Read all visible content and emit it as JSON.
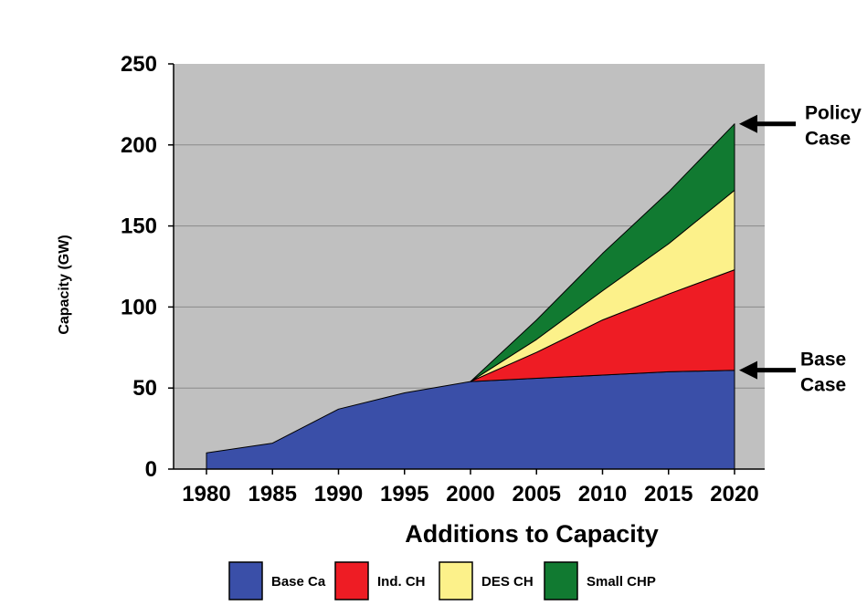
{
  "chart_data": {
    "type": "area",
    "stacked": true,
    "title": "",
    "xlabel": "Additions to Capacity",
    "ylabel": "Capacity (GW)",
    "x": [
      1980,
      1985,
      1990,
      1995,
      2000,
      2005,
      2010,
      2015,
      2020
    ],
    "x_tick_labels": [
      "1980",
      "1985",
      "1990",
      "1995",
      "2000",
      "2005",
      "2010",
      "2015",
      "2020"
    ],
    "ylim": [
      0,
      250
    ],
    "y_ticks": [
      0,
      50,
      100,
      150,
      200,
      250
    ],
    "grid": "horizontal",
    "plot_background": "#c0c0c0",
    "series": [
      {
        "name": "Base Case",
        "legend_label": "Base Ca",
        "color": "#3a4fa8",
        "values": [
          10,
          16,
          37,
          47,
          54,
          56,
          58,
          60,
          61
        ]
      },
      {
        "name": "Ind. CHP",
        "legend_label": "Ind. CH",
        "color": "#ee1c24",
        "values": [
          null,
          null,
          null,
          null,
          0,
          16,
          34,
          48,
          62
        ]
      },
      {
        "name": "DES CHP",
        "legend_label": "DES CH",
        "color": "#fcf18a",
        "values": [
          null,
          null,
          null,
          null,
          0,
          8,
          18,
          31,
          49
        ]
      },
      {
        "name": "Small CHP",
        "legend_label": "Small CHP",
        "color": "#117a31",
        "values": [
          null,
          null,
          null,
          null,
          0,
          12,
          23,
          32,
          41
        ]
      }
    ],
    "annotations": [
      {
        "lines": [
          "Policy",
          "Case"
        ],
        "points_to_x": 2020,
        "points_to_y": 213
      },
      {
        "lines": [
          "Base",
          "Case"
        ],
        "points_to_x": 2020,
        "points_to_y": 61
      }
    ],
    "legend_position": "bottom"
  }
}
